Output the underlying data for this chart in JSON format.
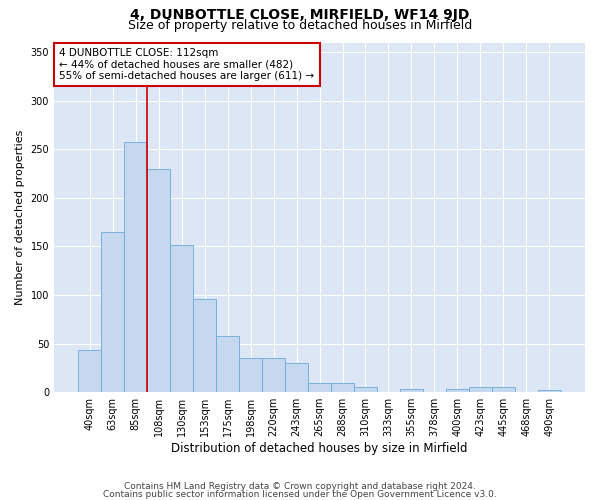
{
  "title1": "4, DUNBOTTLE CLOSE, MIRFIELD, WF14 9JD",
  "title2": "Size of property relative to detached houses in Mirfield",
  "xlabel": "Distribution of detached houses by size in Mirfield",
  "ylabel": "Number of detached properties",
  "categories": [
    "40sqm",
    "63sqm",
    "85sqm",
    "108sqm",
    "130sqm",
    "153sqm",
    "175sqm",
    "198sqm",
    "220sqm",
    "243sqm",
    "265sqm",
    "288sqm",
    "310sqm",
    "333sqm",
    "355sqm",
    "378sqm",
    "400sqm",
    "423sqm",
    "445sqm",
    "468sqm",
    "490sqm"
  ],
  "values": [
    43,
    165,
    258,
    230,
    152,
    96,
    58,
    35,
    35,
    30,
    9,
    9,
    5,
    0,
    3,
    0,
    3,
    5,
    5,
    0,
    2
  ],
  "bar_color": "#c5d8f0",
  "bar_edge_color": "#6aaad4",
  "bg_color": "#dce6f5",
  "annotation_text": "4 DUNBOTTLE CLOSE: 112sqm\n← 44% of detached houses are smaller (482)\n55% of semi-detached houses are larger (611) →",
  "vline_x": 2.5,
  "ylim": [
    0,
    360
  ],
  "yticks": [
    0,
    50,
    100,
    150,
    200,
    250,
    300,
    350
  ],
  "footer1": "Contains HM Land Registry data © Crown copyright and database right 2024.",
  "footer2": "Contains public sector information licensed under the Open Government Licence v3.0.",
  "vline_color": "#cc0000",
  "annotation_box_edgecolor": "#cc0000",
  "title1_fontsize": 10,
  "title2_fontsize": 9,
  "xlabel_fontsize": 8.5,
  "ylabel_fontsize": 8,
  "tick_fontsize": 7,
  "footer_fontsize": 6.5,
  "annotation_fontsize": 7.5
}
